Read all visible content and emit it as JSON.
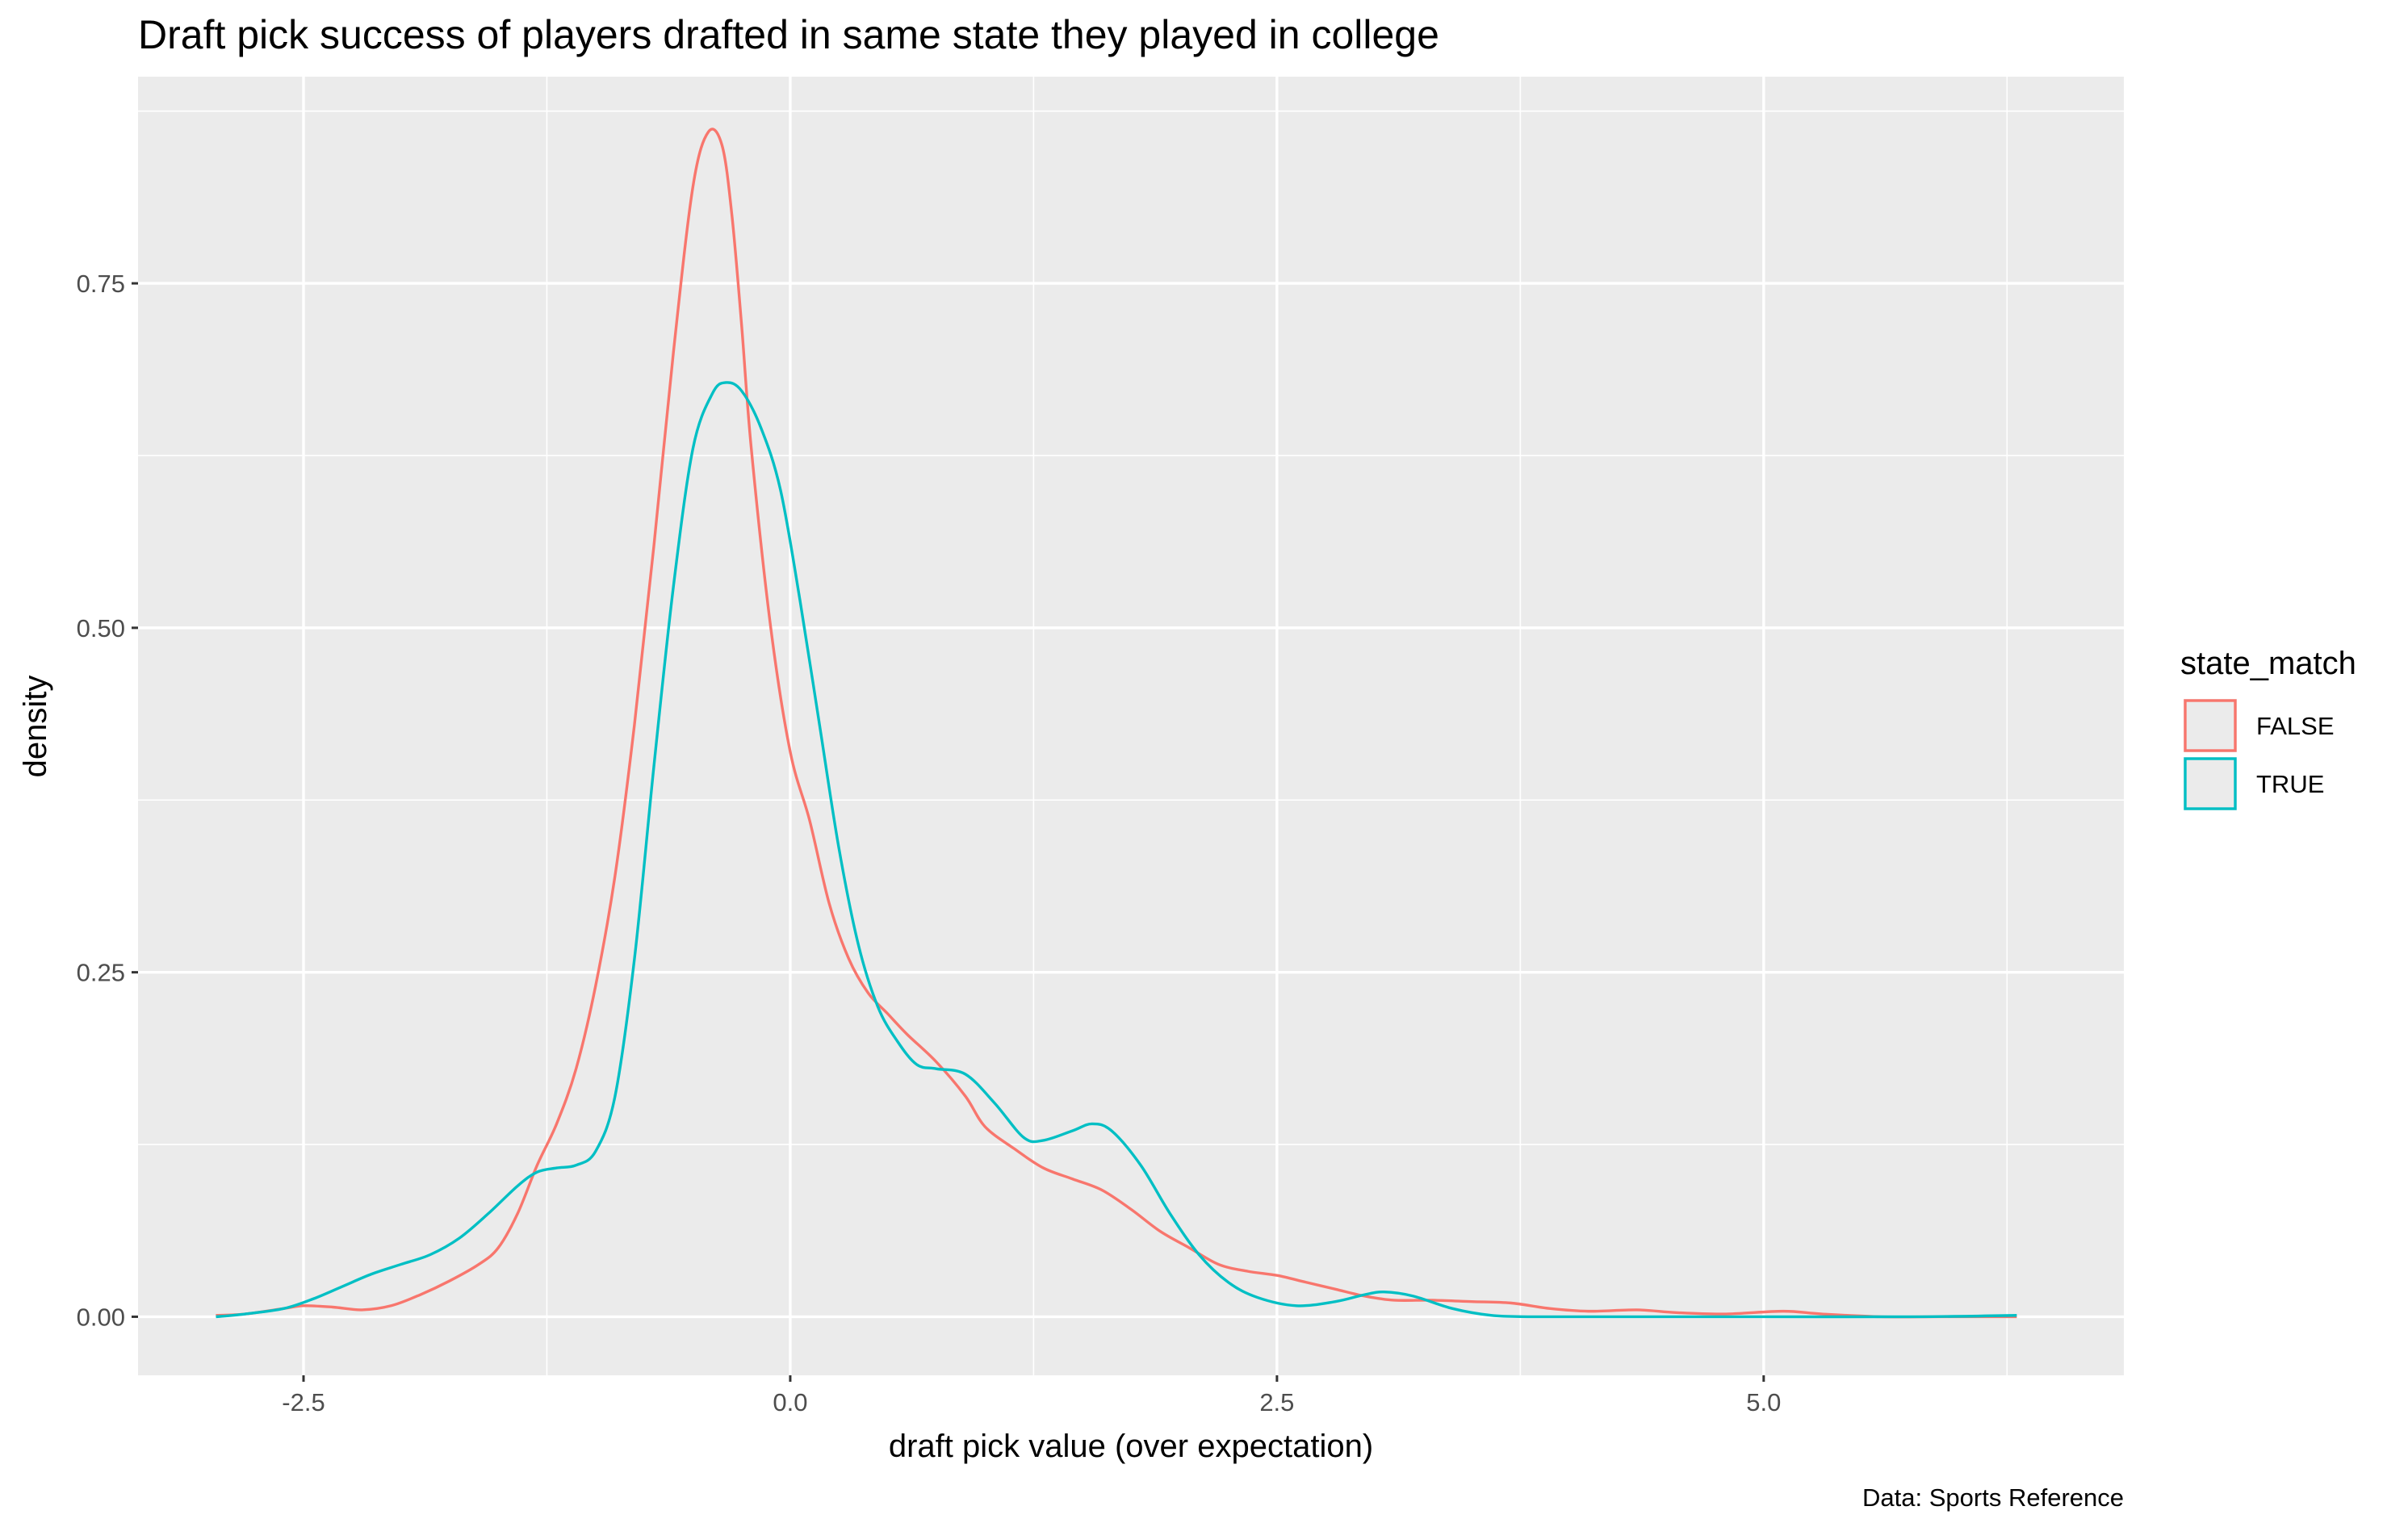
{
  "chart_data": {
    "type": "line",
    "subtype": "density",
    "title": "Draft pick success of players drafted in same state they played in college",
    "xlabel": "draft pick value (over expectation)",
    "ylabel": "density",
    "caption": "Data: Sports Reference",
    "xlim": [
      -3.35,
      6.85
    ],
    "ylim": [
      -0.0425,
      0.9
    ],
    "x_ticks": [
      -2.5,
      0.0,
      2.5,
      5.0
    ],
    "x_tick_labels": [
      "-2.5",
      "0.0",
      "2.5",
      "5.0"
    ],
    "y_ticks": [
      0.0,
      0.25,
      0.5,
      0.75
    ],
    "y_tick_labels": [
      "0.00",
      "0.25",
      "0.50",
      "0.75"
    ],
    "grid": true,
    "background": "#ebebeb",
    "legend": {
      "title": "state_match",
      "position": "right"
    },
    "series": [
      {
        "name": "FALSE",
        "color": "#F8766D",
        "points": [
          [
            -2.95,
            0.001
          ],
          [
            -2.8,
            0.002
          ],
          [
            -2.6,
            0.006
          ],
          [
            -2.5,
            0.008
          ],
          [
            -2.35,
            0.007
          ],
          [
            -2.2,
            0.005
          ],
          [
            -2.05,
            0.008
          ],
          [
            -1.9,
            0.016
          ],
          [
            -1.75,
            0.026
          ],
          [
            -1.6,
            0.038
          ],
          [
            -1.5,
            0.05
          ],
          [
            -1.4,
            0.075
          ],
          [
            -1.3,
            0.11
          ],
          [
            -1.2,
            0.14
          ],
          [
            -1.1,
            0.18
          ],
          [
            -1.0,
            0.24
          ],
          [
            -0.9,
            0.32
          ],
          [
            -0.8,
            0.43
          ],
          [
            -0.7,
            0.56
          ],
          [
            -0.6,
            0.7
          ],
          [
            -0.5,
            0.82
          ],
          [
            -0.42,
            0.86
          ],
          [
            -0.35,
            0.85
          ],
          [
            -0.3,
            0.8
          ],
          [
            -0.25,
            0.72
          ],
          [
            -0.2,
            0.63
          ],
          [
            -0.1,
            0.5
          ],
          [
            0.0,
            0.41
          ],
          [
            0.1,
            0.36
          ],
          [
            0.2,
            0.3
          ],
          [
            0.3,
            0.26
          ],
          [
            0.4,
            0.235
          ],
          [
            0.5,
            0.22
          ],
          [
            0.6,
            0.205
          ],
          [
            0.75,
            0.185
          ],
          [
            0.9,
            0.16
          ],
          [
            1.0,
            0.138
          ],
          [
            1.15,
            0.122
          ],
          [
            1.3,
            0.108
          ],
          [
            1.45,
            0.1
          ],
          [
            1.6,
            0.092
          ],
          [
            1.75,
            0.078
          ],
          [
            1.9,
            0.062
          ],
          [
            2.05,
            0.05
          ],
          [
            2.2,
            0.038
          ],
          [
            2.35,
            0.033
          ],
          [
            2.5,
            0.03
          ],
          [
            2.65,
            0.025
          ],
          [
            2.8,
            0.02
          ],
          [
            2.95,
            0.015
          ],
          [
            3.1,
            0.012
          ],
          [
            3.3,
            0.012
          ],
          [
            3.5,
            0.011
          ],
          [
            3.7,
            0.01
          ],
          [
            3.9,
            0.006
          ],
          [
            4.1,
            0.004
          ],
          [
            4.35,
            0.005
          ],
          [
            4.55,
            0.003
          ],
          [
            4.8,
            0.002
          ],
          [
            5.1,
            0.004
          ],
          [
            5.3,
            0.002
          ],
          [
            5.6,
            0.0
          ],
          [
            5.9,
            0.0
          ],
          [
            6.2,
            0.0
          ],
          [
            6.3,
            0.0
          ]
        ]
      },
      {
        "name": "TRUE",
        "color": "#00BFC4",
        "points": [
          [
            -2.95,
            0.0
          ],
          [
            -2.8,
            0.002
          ],
          [
            -2.6,
            0.006
          ],
          [
            -2.45,
            0.013
          ],
          [
            -2.3,
            0.022
          ],
          [
            -2.15,
            0.031
          ],
          [
            -2.0,
            0.038
          ],
          [
            -1.85,
            0.045
          ],
          [
            -1.7,
            0.057
          ],
          [
            -1.55,
            0.075
          ],
          [
            -1.4,
            0.095
          ],
          [
            -1.3,
            0.105
          ],
          [
            -1.2,
            0.108
          ],
          [
            -1.1,
            0.11
          ],
          [
            -1.0,
            0.12
          ],
          [
            -0.9,
            0.16
          ],
          [
            -0.8,
            0.26
          ],
          [
            -0.7,
            0.4
          ],
          [
            -0.6,
            0.53
          ],
          [
            -0.5,
            0.63
          ],
          [
            -0.4,
            0.67
          ],
          [
            -0.33,
            0.678
          ],
          [
            -0.25,
            0.672
          ],
          [
            -0.15,
            0.645
          ],
          [
            -0.05,
            0.6
          ],
          [
            0.05,
            0.52
          ],
          [
            0.15,
            0.43
          ],
          [
            0.25,
            0.34
          ],
          [
            0.35,
            0.27
          ],
          [
            0.45,
            0.225
          ],
          [
            0.55,
            0.2
          ],
          [
            0.65,
            0.183
          ],
          [
            0.75,
            0.18
          ],
          [
            0.9,
            0.176
          ],
          [
            1.05,
            0.155
          ],
          [
            1.2,
            0.13
          ],
          [
            1.3,
            0.128
          ],
          [
            1.45,
            0.135
          ],
          [
            1.55,
            0.14
          ],
          [
            1.65,
            0.135
          ],
          [
            1.8,
            0.11
          ],
          [
            1.95,
            0.075
          ],
          [
            2.1,
            0.045
          ],
          [
            2.25,
            0.025
          ],
          [
            2.4,
            0.014
          ],
          [
            2.6,
            0.008
          ],
          [
            2.8,
            0.011
          ],
          [
            2.95,
            0.016
          ],
          [
            3.05,
            0.018
          ],
          [
            3.2,
            0.015
          ],
          [
            3.4,
            0.006
          ],
          [
            3.6,
            0.001
          ],
          [
            3.8,
            0.0
          ],
          [
            4.2,
            0.0
          ],
          [
            5.0,
            0.0
          ],
          [
            5.8,
            0.0
          ],
          [
            6.3,
            0.001
          ]
        ]
      }
    ]
  }
}
